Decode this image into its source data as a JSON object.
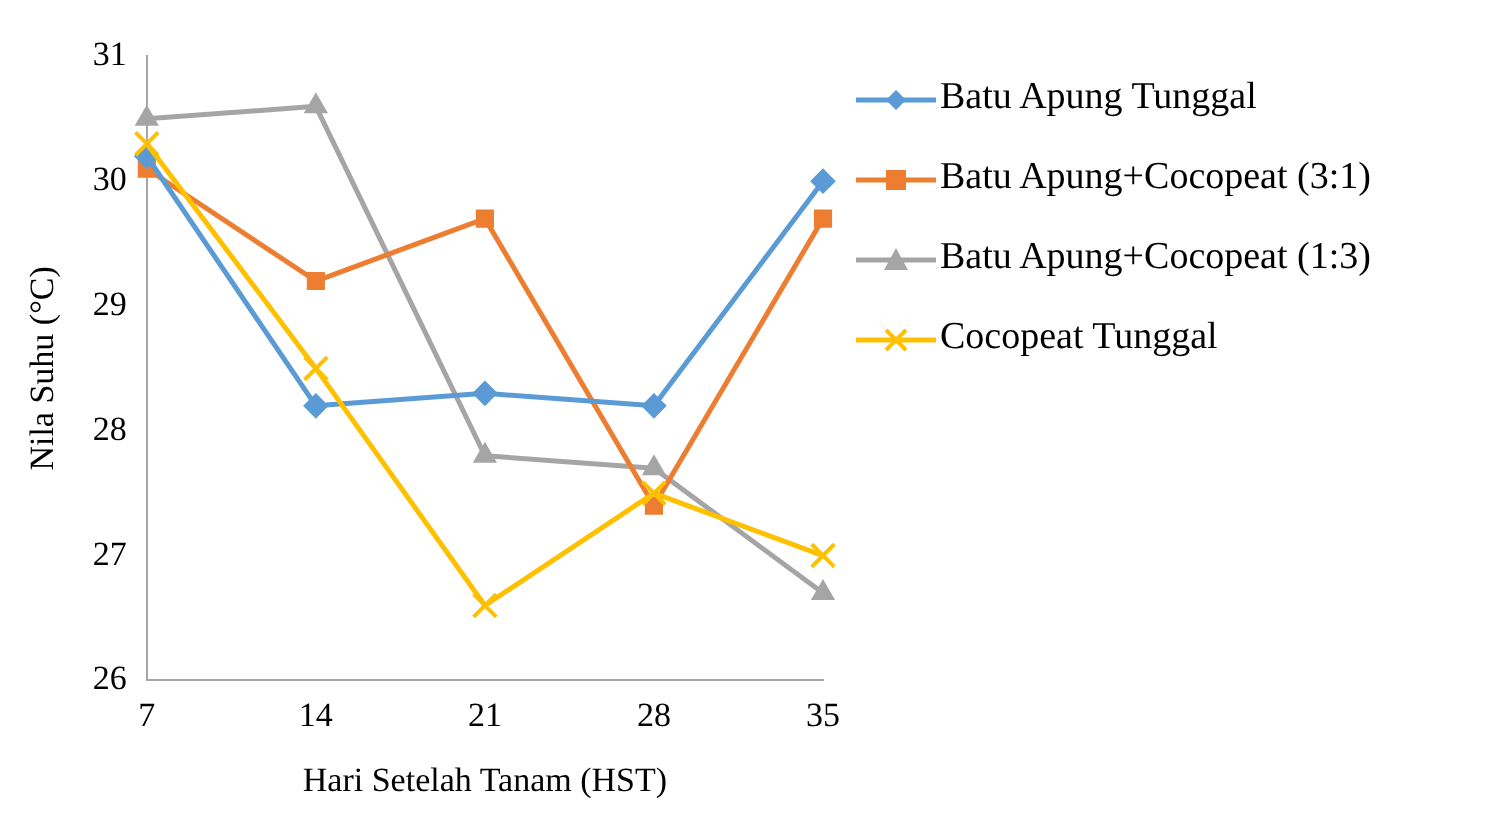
{
  "chart_data": {
    "type": "line",
    "xlabel": "Hari Setelah Tanam (HST)",
    "ylabel": "Nila Suhu (°C)",
    "categories": [
      "7",
      "14",
      "21",
      "28",
      "35"
    ],
    "ylim": [
      26,
      31
    ],
    "yticks": [
      26,
      27,
      28,
      29,
      30,
      31
    ],
    "grid": false,
    "legend": "right",
    "line_style": "solid",
    "series": [
      {
        "name": "Batu Apung Tunggal",
        "color": "#5b9bd5",
        "marker": "diamond",
        "values": [
          30.2,
          28.2,
          28.3,
          28.2,
          30.0
        ]
      },
      {
        "name": "Batu Apung+Cocopeat (3:1)",
        "color": "#ed7d31",
        "marker": "square",
        "values": [
          30.1,
          29.2,
          29.7,
          27.4,
          29.7
        ]
      },
      {
        "name": "Batu Apung+Cocopeat (1:3)",
        "color": "#a5a5a5",
        "marker": "triangle",
        "values": [
          30.5,
          30.6,
          27.8,
          27.7,
          26.7
        ]
      },
      {
        "name": "Cocopeat Tunggal",
        "color": "#ffc000",
        "marker": "cross",
        "values": [
          30.3,
          28.5,
          26.6,
          27.5,
          27.0
        ]
      }
    ]
  }
}
